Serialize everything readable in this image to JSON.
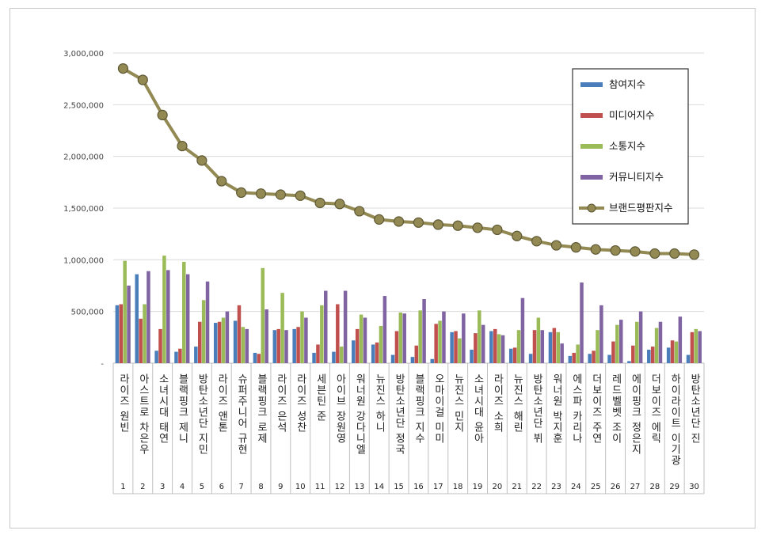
{
  "chart_data": {
    "type": "bar",
    "categories": [
      "라이즈 원빈",
      "아스트로 차은우",
      "소녀시대 태연",
      "블랙핑크 제니",
      "방탄소년단 지민",
      "라이즈 앤톤",
      "슈퍼주니어 규현",
      "블랙핑크 로제",
      "라이즈 은석",
      "라이즈 성찬",
      "세븐틴 준",
      "아이브 장원영",
      "워너원 강다니엘",
      "뉴진스 하니",
      "방탄소년단 정국",
      "블랙핑크 지수",
      "오마이걸 미미",
      "뉴진스 민지",
      "소녀시대 윤아",
      "라이즈 소희",
      "뉴진스 해린",
      "방탄소년단 뷔",
      "워너원 박지훈",
      "에스파 카리나",
      "더보이즈 주연",
      "레드벨벳 조이",
      "에이핑크 정은지",
      "더보이즈 에릭",
      "하이라이트 이기광",
      "방탄소년단 진"
    ],
    "ranks": [
      "1",
      "2",
      "3",
      "4",
      "5",
      "6",
      "7",
      "8",
      "9",
      "10",
      "11",
      "12",
      "13",
      "14",
      "15",
      "16",
      "17",
      "18",
      "19",
      "20",
      "21",
      "22",
      "23",
      "24",
      "25",
      "26",
      "27",
      "28",
      "29",
      "30"
    ],
    "y_ticks": [
      "-",
      "500,000",
      "1,000,000",
      "1,500,000",
      "2,000,000",
      "2,500,000",
      "3,000,000"
    ],
    "ylim": [
      0,
      3000000
    ],
    "grid": true,
    "legend_position": "top-right",
    "series": [
      {
        "name": "참여지수",
        "kind": "bar",
        "color": "#4a7ebb",
        "values": [
          560000,
          860000,
          120000,
          110000,
          160000,
          390000,
          410000,
          100000,
          320000,
          330000,
          100000,
          110000,
          220000,
          180000,
          80000,
          60000,
          40000,
          300000,
          130000,
          310000,
          140000,
          90000,
          300000,
          70000,
          90000,
          80000,
          20000,
          130000,
          150000,
          80000
        ]
      },
      {
        "name": "미디어지수",
        "kind": "bar",
        "color": "#c0504d",
        "values": [
          570000,
          430000,
          330000,
          140000,
          400000,
          400000,
          560000,
          90000,
          330000,
          350000,
          180000,
          570000,
          330000,
          200000,
          310000,
          170000,
          380000,
          310000,
          290000,
          330000,
          150000,
          320000,
          340000,
          100000,
          120000,
          210000,
          170000,
          160000,
          220000,
          300000
        ]
      },
      {
        "name": "소통지수",
        "kind": "bar",
        "color": "#9bbb59",
        "values": [
          990000,
          570000,
          1040000,
          980000,
          610000,
          440000,
          350000,
          920000,
          680000,
          500000,
          560000,
          160000,
          470000,
          360000,
          490000,
          510000,
          410000,
          240000,
          510000,
          280000,
          320000,
          440000,
          300000,
          180000,
          320000,
          370000,
          400000,
          340000,
          210000,
          330000
        ]
      },
      {
        "name": "커뮤니티지수",
        "kind": "bar",
        "color": "#8064a2",
        "values": [
          750000,
          890000,
          900000,
          860000,
          790000,
          500000,
          330000,
          520000,
          320000,
          440000,
          700000,
          700000,
          440000,
          650000,
          480000,
          620000,
          500000,
          480000,
          370000,
          270000,
          630000,
          320000,
          190000,
          780000,
          560000,
          420000,
          500000,
          400000,
          450000,
          310000
        ]
      },
      {
        "name": "브랜드평판지수",
        "kind": "line",
        "color": "#938953",
        "values": [
          2850000,
          2740000,
          2400000,
          2100000,
          1960000,
          1760000,
          1650000,
          1640000,
          1630000,
          1620000,
          1550000,
          1540000,
          1470000,
          1390000,
          1370000,
          1360000,
          1340000,
          1330000,
          1310000,
          1290000,
          1230000,
          1180000,
          1140000,
          1120000,
          1100000,
          1090000,
          1080000,
          1060000,
          1060000,
          1050000
        ]
      }
    ]
  }
}
